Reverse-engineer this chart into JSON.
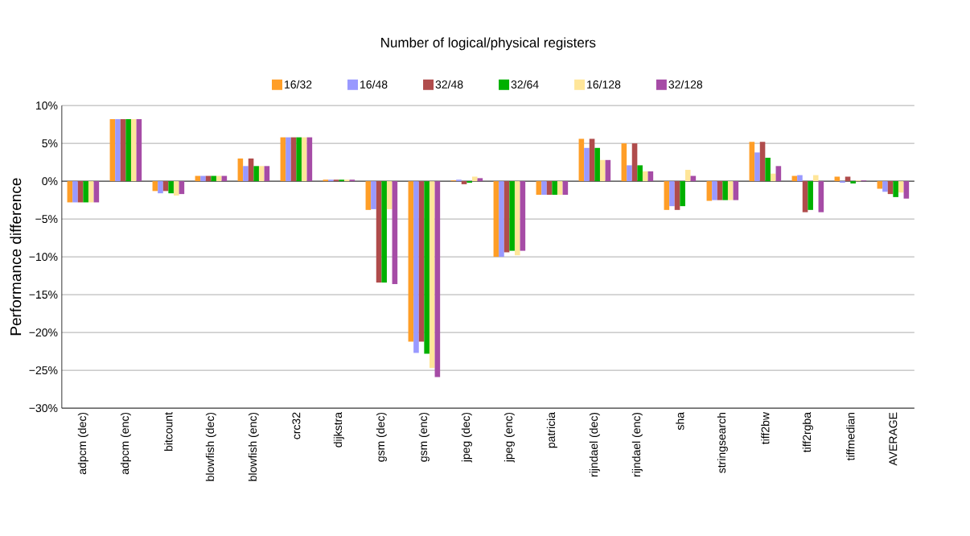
{
  "chart_data": {
    "type": "bar",
    "title": "Number of logical/physical registers",
    "ylabel": "Performance difference",
    "categories": [
      "adpcm (dec)",
      "adpcm (enc)",
      "bitcount",
      "blowfish (dec)",
      "blowfish (enc)",
      "crc32",
      "dijkstra",
      "gsm (dec)",
      "gsm (enc)",
      "jpeg (dec)",
      "jpeg (enc)",
      "patricia",
      "rijndael (dec)",
      "rijndael (enc)",
      "sha",
      "stringsearch",
      "tiff2bw",
      "tiff2rgba",
      "tiffmedian",
      "AVERAGE"
    ],
    "series": [
      {
        "name": "16/32",
        "color": "#ff9e27",
        "values": [
          -2.8,
          8.2,
          -1.3,
          0.7,
          3.0,
          5.8,
          0.2,
          -3.8,
          -21.2,
          0.1,
          -10.0,
          -1.8,
          5.6,
          5.0,
          -3.8,
          -2.6,
          5.2,
          0.7,
          0.6,
          -1.0
        ]
      },
      {
        "name": "16/48",
        "color": "#9999ff",
        "values": [
          -2.8,
          8.2,
          -1.6,
          0.7,
          2.0,
          5.8,
          0.2,
          -3.7,
          -22.7,
          0.2,
          -10.0,
          -1.8,
          4.4,
          2.1,
          -3.3,
          -2.5,
          3.8,
          0.8,
          -0.2,
          -1.4
        ]
      },
      {
        "name": "32/48",
        "color": "#b04c4c",
        "values": [
          -2.8,
          8.2,
          -1.3,
          0.7,
          3.0,
          5.8,
          0.2,
          -13.4,
          -21.2,
          -0.4,
          -9.4,
          -1.8,
          5.6,
          5.0,
          -3.8,
          -2.5,
          5.2,
          -4.1,
          0.6,
          -1.7
        ]
      },
      {
        "name": "32/64",
        "color": "#00b000",
        "values": [
          -2.8,
          8.2,
          -1.6,
          0.7,
          2.0,
          5.8,
          0.2,
          -13.4,
          -22.8,
          -0.2,
          -9.2,
          -1.8,
          4.4,
          2.1,
          -3.3,
          -2.5,
          3.1,
          -3.8,
          -0.3,
          -2.1
        ]
      },
      {
        "name": "16/128",
        "color": "#ffe699",
        "values": [
          -2.8,
          8.2,
          -1.9,
          0.7,
          2.0,
          5.8,
          0.2,
          -3.7,
          -24.7,
          0.6,
          -9.8,
          -1.8,
          2.8,
          1.3,
          1.5,
          -2.5,
          1.0,
          0.8,
          0.1,
          -1.5
        ]
      },
      {
        "name": "32/128",
        "color": "#a64ca6",
        "values": [
          -2.8,
          8.2,
          -1.7,
          0.7,
          2.0,
          5.8,
          0.2,
          -13.6,
          -25.9,
          0.4,
          -9.2,
          -1.8,
          2.8,
          1.3,
          0.7,
          -2.5,
          2.0,
          -4.1,
          0.1,
          -2.3
        ]
      }
    ],
    "ylim": [
      -30,
      10
    ],
    "yticks": [
      {
        "value": -30,
        "label": "−30%"
      },
      {
        "value": -25,
        "label": "−25%"
      },
      {
        "value": -20,
        "label": "−20%"
      },
      {
        "value": -15,
        "label": "−15%"
      },
      {
        "value": -10,
        "label": "−10%"
      },
      {
        "value": -5,
        "label": "−5%"
      },
      {
        "value": 0,
        "label": "0%"
      },
      {
        "value": 5,
        "label": "5%"
      },
      {
        "value": 10,
        "label": "10%"
      }
    ],
    "grid": "y",
    "legend": "top"
  }
}
